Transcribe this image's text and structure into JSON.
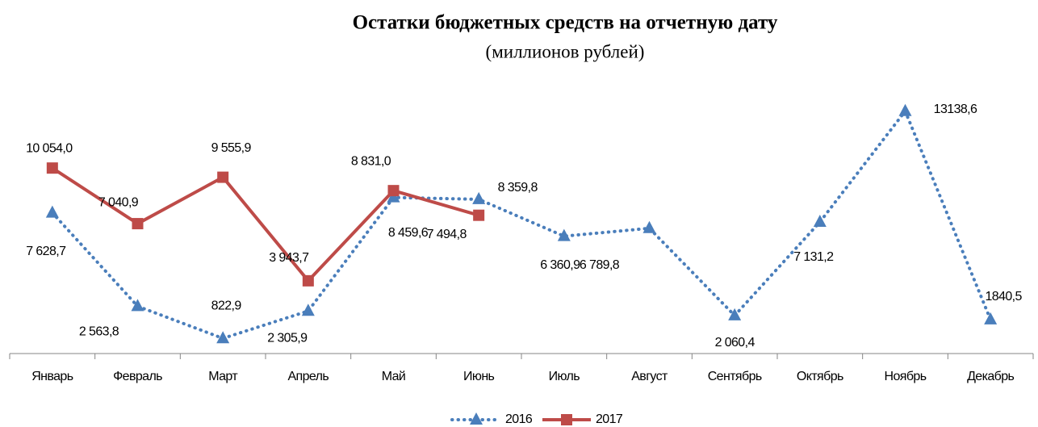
{
  "chart_data": {
    "type": "line",
    "title": "Остатки бюджетных средств на отчетную дату",
    "subtitle": "(миллионов рублей)",
    "categories": [
      "Январь",
      "Февраль",
      "Март",
      "Апрель",
      "Май",
      "Июнь",
      "Июль",
      "Август",
      "Сентябрь",
      "Октябрь",
      "Ноябрь",
      "Декабрь"
    ],
    "series": [
      {
        "name": "2016",
        "color": "#4a7ebb",
        "style": "dotted",
        "marker": "triangle",
        "values": [
          7628.7,
          2563.8,
          822.9,
          2305.9,
          8459.6,
          8359.8,
          6360.9,
          6789.8,
          2060.4,
          7131.2,
          13138.6,
          1840.5
        ],
        "value_labels": [
          "7 628,7",
          "2 563,8",
          "822,9",
          "2 305,9",
          "8 459,6",
          "8 359,8",
          "6 360,9",
          "6 789,8",
          "2 060,4",
          "7 131,2",
          "13138,6",
          "1840,5"
        ]
      },
      {
        "name": "2017",
        "color": "#be4b48",
        "style": "solid",
        "marker": "square",
        "values": [
          10054.0,
          7040.9,
          9555.9,
          3943.7,
          8831.0,
          7494.8,
          null,
          null,
          null,
          null,
          null,
          null
        ],
        "value_labels": [
          "10 054,0",
          "7 040,9",
          "9 555,9",
          "3 943,7",
          "8 831,0",
          "7 494,8",
          null,
          null,
          null,
          null,
          null,
          null
        ]
      }
    ],
    "ylim": [
      0,
      14000
    ],
    "legend": "bottom"
  }
}
